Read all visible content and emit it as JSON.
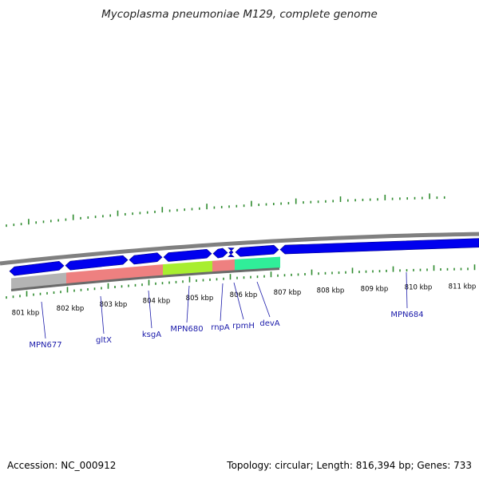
{
  "title": "Mycoplasma pneumoniae M129, complete genome",
  "footer": {
    "accession": "Accession: NC_000912",
    "topology": "Topology: circular; Length: 816,394 bp; Genes: 733"
  },
  "colors": {
    "forward_gene": "#0000ee",
    "tick": "#2e8b2e",
    "backbone": "#808080",
    "label": "#1a1aaa",
    "cog_gray": "#b4b4b4",
    "cog_red": "#ee8080",
    "cog_green": "#a8ee30",
    "cog_teal": "#30ee99"
  },
  "kbp_ticks": [
    "801 kbp",
    "802 kbp",
    "803 kbp",
    "804 kbp",
    "805 kbp",
    "806 kbp",
    "807 kbp",
    "808 kbp",
    "809 kbp",
    "810 kbp",
    "811 kbp"
  ],
  "genes": [
    {
      "label": "MPN677"
    },
    {
      "label": "gltX"
    },
    {
      "label": "ksgA"
    },
    {
      "label": "MPN680"
    },
    {
      "label": "rnpA"
    },
    {
      "label": "rpmH"
    },
    {
      "label": "devA"
    },
    {
      "label": "MPN684"
    }
  ]
}
